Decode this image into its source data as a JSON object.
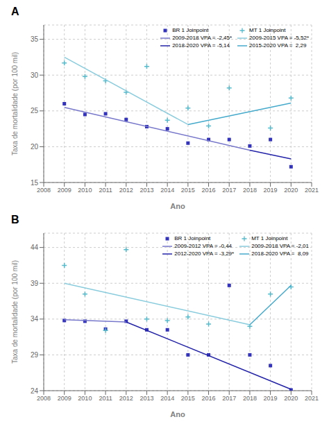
{
  "chart_data": [
    {
      "type": "scatter",
      "title": "A",
      "xlabel": "Ano",
      "ylabel": "Taxa de mortalidade (por 100 mil)",
      "xlim": [
        2008,
        2021
      ],
      "xticks": [
        2008,
        2009,
        2010,
        2011,
        2012,
        2013,
        2014,
        2015,
        2016,
        2017,
        2018,
        2019,
        2020,
        2021
      ],
      "ylim": [
        15,
        37
      ],
      "yticks": [
        15,
        20,
        25,
        30,
        35
      ],
      "grid": true,
      "legend": "upper right",
      "series": [
        {
          "name": "BR 1 Joinpoint",
          "type": "scatter",
          "marker": "square",
          "color": "#3333bb",
          "x": [
            2009,
            2010,
            2011,
            2012,
            2013,
            2014,
            2015,
            2016,
            2017,
            2018,
            2019,
            2020
          ],
          "values": [
            26.0,
            24.5,
            24.6,
            23.8,
            22.8,
            22.5,
            20.5,
            21.0,
            21.0,
            20.1,
            21.0,
            17.2
          ]
        },
        {
          "name": "2009-2018 VPA = -2,45*",
          "type": "line",
          "color": "#7777cc",
          "x": [
            2009,
            2018
          ],
          "values": [
            25.5,
            19.5
          ]
        },
        {
          "name": "2018-2020 VPA = -5,14",
          "type": "line",
          "color": "#2222aa",
          "x": [
            2018,
            2020
          ],
          "values": [
            19.5,
            18.3
          ]
        },
        {
          "name": "MT 1 Joinpoint",
          "type": "scatter",
          "marker": "plus",
          "color": "#55bbcc",
          "x": [
            2009,
            2010,
            2011,
            2012,
            2013,
            2014,
            2015,
            2016,
            2017,
            2018,
            2019,
            2020
          ],
          "values": [
            31.7,
            29.8,
            29.2,
            27.6,
            31.2,
            23.7,
            25.4,
            22.9,
            28.2,
            null,
            22.6,
            26.8
          ]
        },
        {
          "name": "2009-2015 VPA = -5,52*",
          "type": "line",
          "color": "#88ccdd",
          "x": [
            2009,
            2015
          ],
          "values": [
            32.5,
            23.1
          ]
        },
        {
          "name": "2015-2020 VPA =  2,29",
          "type": "line",
          "color": "#44aacc",
          "x": [
            2015,
            2020
          ],
          "values": [
            23.1,
            26.1
          ]
        }
      ]
    },
    {
      "type": "scatter",
      "title": "B",
      "xlabel": "Ano",
      "ylabel": "Taxa de mortalidade (por 100 mil)",
      "xlim": [
        2008,
        2021
      ],
      "xticks": [
        2008,
        2009,
        2010,
        2011,
        2012,
        2013,
        2014,
        2015,
        2016,
        2017,
        2018,
        2019,
        2020,
        2021
      ],
      "ylim": [
        24,
        46
      ],
      "yticks": [
        24,
        29,
        34,
        39,
        44
      ],
      "grid": true,
      "legend": "upper right",
      "series": [
        {
          "name": "BR 1 Joinpoint",
          "type": "scatter",
          "marker": "square",
          "color": "#3333bb",
          "x": [
            2009,
            2010,
            2011,
            2012,
            2013,
            2014,
            2015,
            2016,
            2017,
            2018,
            2019,
            2020
          ],
          "values": [
            33.8,
            33.7,
            32.6,
            33.7,
            32.5,
            32.5,
            29.0,
            29.0,
            38.7,
            29.0,
            27.5,
            24.1
          ]
        },
        {
          "name": "2009-2012 VPA = -0,44",
          "type": "line",
          "color": "#7777cc",
          "x": [
            2009,
            2012
          ],
          "values": [
            33.9,
            33.6
          ]
        },
        {
          "name": "2012-2020 VPA = -3,29*",
          "type": "line",
          "color": "#2222aa",
          "x": [
            2012,
            2020
          ],
          "values": [
            33.6,
            24.2
          ]
        },
        {
          "name": "MT 1 Joinpoint",
          "type": "scatter",
          "marker": "plus",
          "color": "#55bbcc",
          "x": [
            2009,
            2010,
            2011,
            2012,
            2013,
            2014,
            2015,
            2016,
            2017,
            2018,
            2019,
            2020
          ],
          "values": [
            41.5,
            37.5,
            32.4,
            43.7,
            34.0,
            33.8,
            34.3,
            33.3,
            null,
            33.0,
            37.5,
            38.5
          ]
        },
        {
          "name": "2009-2018 VPA = -2,01",
          "type": "line",
          "color": "#88ccdd",
          "x": [
            2009,
            2018
          ],
          "values": [
            39.0,
            33.2
          ]
        },
        {
          "name": "2018-2020 VPA =  8,09",
          "type": "line",
          "color": "#44aacc",
          "x": [
            2018,
            2020
          ],
          "values": [
            33.2,
            38.7
          ]
        }
      ]
    }
  ]
}
